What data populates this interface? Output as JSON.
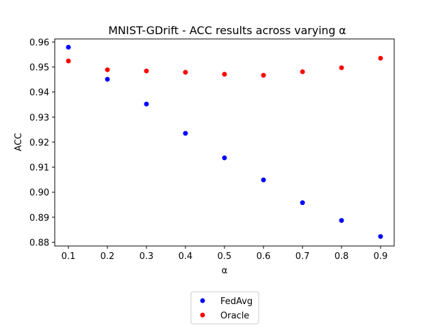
{
  "chart_data": {
    "type": "scatter",
    "title": "MNIST-GDrift - ACC results across varying α",
    "xlabel": "α",
    "ylabel": "ACC",
    "x": [
      0.1,
      0.2,
      0.3,
      0.4,
      0.5,
      0.6,
      0.7,
      0.8,
      0.9
    ],
    "xlim": [
      0.065,
      0.935
    ],
    "ylim": [
      0.8785,
      0.9612
    ],
    "xticks": [
      "0.1",
      "0.2",
      "0.3",
      "0.4",
      "0.5",
      "0.6",
      "0.7",
      "0.8",
      "0.9"
    ],
    "yticks": [
      "0.88",
      "0.89",
      "0.90",
      "0.91",
      "0.92",
      "0.93",
      "0.94",
      "0.95",
      "0.96"
    ],
    "grid": false,
    "legend_position": "below-center",
    "series": [
      {
        "name": "FedAvg",
        "color": "#0000ff",
        "values": [
          0.9579,
          0.9451,
          0.9352,
          0.9235,
          0.9137,
          0.9049,
          0.8958,
          0.8887,
          0.8823
        ]
      },
      {
        "name": "Oracle",
        "color": "#ff0000",
        "values": [
          0.9524,
          0.9489,
          0.9484,
          0.9479,
          0.9471,
          0.9467,
          0.9481,
          0.9497,
          0.9535
        ]
      }
    ]
  }
}
